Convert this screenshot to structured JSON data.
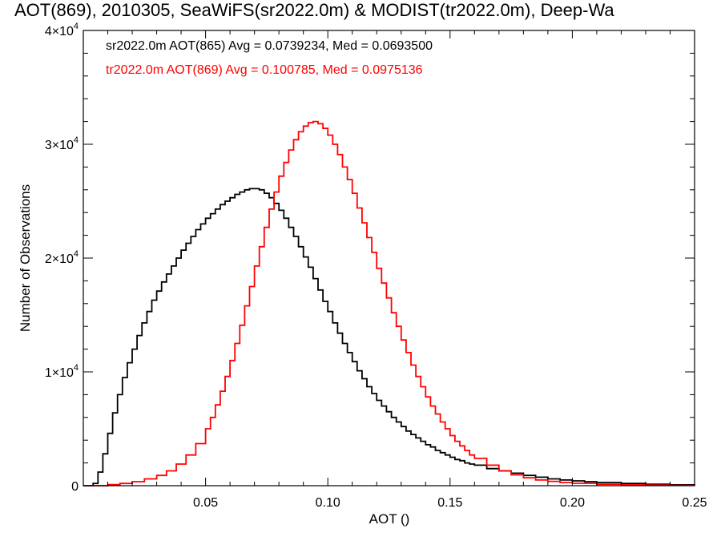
{
  "chart_data": {
    "type": "line",
    "title": "AOT(869), 2010305, SeaWiFS(sr2022.0m) & MODIST(tr2022.0m), Deep-Wa",
    "xlabel": "AOT ()",
    "ylabel": "Number of Observations",
    "xlim": [
      0.0,
      0.25
    ],
    "ylim": [
      0,
      40000
    ],
    "x_ticks": [
      {
        "value": 0.05,
        "label": "0.05"
      },
      {
        "value": 0.1,
        "label": "0.10"
      },
      {
        "value": 0.15,
        "label": "0.15"
      },
      {
        "value": 0.2,
        "label": "0.20"
      },
      {
        "value": 0.25,
        "label": "0.25"
      }
    ],
    "y_ticks": [
      {
        "value": 0,
        "base": "0",
        "exp": ""
      },
      {
        "value": 10000,
        "base": "1×10",
        "exp": "4"
      },
      {
        "value": 20000,
        "base": "2×10",
        "exp": "4"
      },
      {
        "value": 30000,
        "base": "3×10",
        "exp": "4"
      },
      {
        "value": 40000,
        "base": "4×10",
        "exp": "4"
      }
    ],
    "grid": false,
    "legend_placement": "top-left",
    "legend": [
      {
        "text": "sr2022.0m AOT(865) Avg = 0.0739234, Med = 0.0693500",
        "color": "#000000"
      },
      {
        "text": "tr2022.0m AOT(869) Avg = 0.100785, Med = 0.0975136",
        "color": "#ff0000"
      }
    ],
    "series": [
      {
        "color": "#000000",
        "step": true,
        "points": [
          [
            0.0,
            0
          ],
          [
            0.002,
            0
          ],
          [
            0.004,
            200
          ],
          [
            0.006,
            1200
          ],
          [
            0.008,
            2800
          ],
          [
            0.01,
            4600
          ],
          [
            0.012,
            6400
          ],
          [
            0.014,
            8000
          ],
          [
            0.016,
            9500
          ],
          [
            0.018,
            10800
          ],
          [
            0.02,
            12000
          ],
          [
            0.022,
            13200
          ],
          [
            0.024,
            14300
          ],
          [
            0.026,
            15300
          ],
          [
            0.028,
            16300
          ],
          [
            0.03,
            17100
          ],
          [
            0.032,
            17900
          ],
          [
            0.034,
            18600
          ],
          [
            0.036,
            19300
          ],
          [
            0.038,
            20000
          ],
          [
            0.04,
            20700
          ],
          [
            0.042,
            21300
          ],
          [
            0.044,
            21900
          ],
          [
            0.046,
            22500
          ],
          [
            0.048,
            23000
          ],
          [
            0.05,
            23500
          ],
          [
            0.052,
            23900
          ],
          [
            0.054,
            24300
          ],
          [
            0.056,
            24700
          ],
          [
            0.058,
            25000
          ],
          [
            0.06,
            25300
          ],
          [
            0.062,
            25600
          ],
          [
            0.064,
            25800
          ],
          [
            0.066,
            26000
          ],
          [
            0.068,
            26100
          ],
          [
            0.07,
            26100
          ],
          [
            0.072,
            26000
          ],
          [
            0.074,
            25700
          ],
          [
            0.076,
            25300
          ],
          [
            0.078,
            24800
          ],
          [
            0.08,
            24200
          ],
          [
            0.082,
            23500
          ],
          [
            0.084,
            22700
          ],
          [
            0.086,
            21900
          ],
          [
            0.088,
            21000
          ],
          [
            0.09,
            20100
          ],
          [
            0.092,
            19200
          ],
          [
            0.094,
            18200
          ],
          [
            0.096,
            17200
          ],
          [
            0.098,
            16200
          ],
          [
            0.1,
            15300
          ],
          [
            0.102,
            14300
          ],
          [
            0.104,
            13400
          ],
          [
            0.106,
            12500
          ],
          [
            0.108,
            11700
          ],
          [
            0.11,
            10900
          ],
          [
            0.112,
            10100
          ],
          [
            0.114,
            9400
          ],
          [
            0.116,
            8700
          ],
          [
            0.118,
            8100
          ],
          [
            0.12,
            7500
          ],
          [
            0.122,
            7000
          ],
          [
            0.124,
            6500
          ],
          [
            0.126,
            6000
          ],
          [
            0.128,
            5600
          ],
          [
            0.13,
            5200
          ],
          [
            0.132,
            4800
          ],
          [
            0.134,
            4500
          ],
          [
            0.136,
            4200
          ],
          [
            0.138,
            3900
          ],
          [
            0.14,
            3600
          ],
          [
            0.142,
            3400
          ],
          [
            0.144,
            3100
          ],
          [
            0.146,
            2900
          ],
          [
            0.148,
            2700
          ],
          [
            0.15,
            2500
          ],
          [
            0.152,
            2300
          ],
          [
            0.154,
            2200
          ],
          [
            0.156,
            2000
          ],
          [
            0.158,
            1900
          ],
          [
            0.16,
            1800
          ],
          [
            0.165,
            1500
          ],
          [
            0.17,
            1300
          ],
          [
            0.175,
            1100
          ],
          [
            0.18,
            900
          ],
          [
            0.185,
            750
          ],
          [
            0.19,
            600
          ],
          [
            0.195,
            500
          ],
          [
            0.2,
            420
          ],
          [
            0.205,
            350
          ],
          [
            0.21,
            280
          ],
          [
            0.22,
            200
          ],
          [
            0.23,
            130
          ],
          [
            0.24,
            80
          ],
          [
            0.25,
            50
          ]
        ]
      },
      {
        "color": "#ff0000",
        "step": true,
        "points": [
          [
            0.0,
            0
          ],
          [
            0.01,
            100
          ],
          [
            0.015,
            200
          ],
          [
            0.02,
            350
          ],
          [
            0.025,
            600
          ],
          [
            0.03,
            900
          ],
          [
            0.034,
            1300
          ],
          [
            0.038,
            1900
          ],
          [
            0.042,
            2700
          ],
          [
            0.046,
            3700
          ],
          [
            0.05,
            5000
          ],
          [
            0.052,
            6000
          ],
          [
            0.054,
            7100
          ],
          [
            0.056,
            8300
          ],
          [
            0.058,
            9600
          ],
          [
            0.06,
            11000
          ],
          [
            0.062,
            12500
          ],
          [
            0.064,
            14100
          ],
          [
            0.066,
            15800
          ],
          [
            0.068,
            17500
          ],
          [
            0.07,
            19300
          ],
          [
            0.072,
            21000
          ],
          [
            0.074,
            22700
          ],
          [
            0.076,
            24300
          ],
          [
            0.078,
            25800
          ],
          [
            0.08,
            27200
          ],
          [
            0.082,
            28400
          ],
          [
            0.084,
            29500
          ],
          [
            0.086,
            30400
          ],
          [
            0.088,
            31100
          ],
          [
            0.09,
            31600
          ],
          [
            0.092,
            31900
          ],
          [
            0.094,
            32000
          ],
          [
            0.096,
            31800
          ],
          [
            0.098,
            31400
          ],
          [
            0.1,
            30800
          ],
          [
            0.102,
            30000
          ],
          [
            0.104,
            29100
          ],
          [
            0.106,
            28000
          ],
          [
            0.108,
            26900
          ],
          [
            0.11,
            25700
          ],
          [
            0.112,
            24400
          ],
          [
            0.114,
            23100
          ],
          [
            0.116,
            21800
          ],
          [
            0.118,
            20500
          ],
          [
            0.12,
            19100
          ],
          [
            0.122,
            17800
          ],
          [
            0.124,
            16500
          ],
          [
            0.126,
            15200
          ],
          [
            0.128,
            14000
          ],
          [
            0.13,
            12800
          ],
          [
            0.132,
            11700
          ],
          [
            0.134,
            10600
          ],
          [
            0.136,
            9600
          ],
          [
            0.138,
            8700
          ],
          [
            0.14,
            7800
          ],
          [
            0.142,
            7000
          ],
          [
            0.144,
            6300
          ],
          [
            0.146,
            5600
          ],
          [
            0.148,
            5000
          ],
          [
            0.15,
            4400
          ],
          [
            0.152,
            3900
          ],
          [
            0.154,
            3500
          ],
          [
            0.156,
            3100
          ],
          [
            0.158,
            2700
          ],
          [
            0.16,
            2400
          ],
          [
            0.165,
            1800
          ],
          [
            0.17,
            1300
          ],
          [
            0.175,
            950
          ],
          [
            0.18,
            700
          ],
          [
            0.185,
            500
          ],
          [
            0.19,
            380
          ],
          [
            0.195,
            280
          ],
          [
            0.2,
            210
          ],
          [
            0.21,
            130
          ],
          [
            0.22,
            80
          ],
          [
            0.23,
            50
          ],
          [
            0.24,
            30
          ],
          [
            0.25,
            20
          ]
        ]
      }
    ]
  }
}
